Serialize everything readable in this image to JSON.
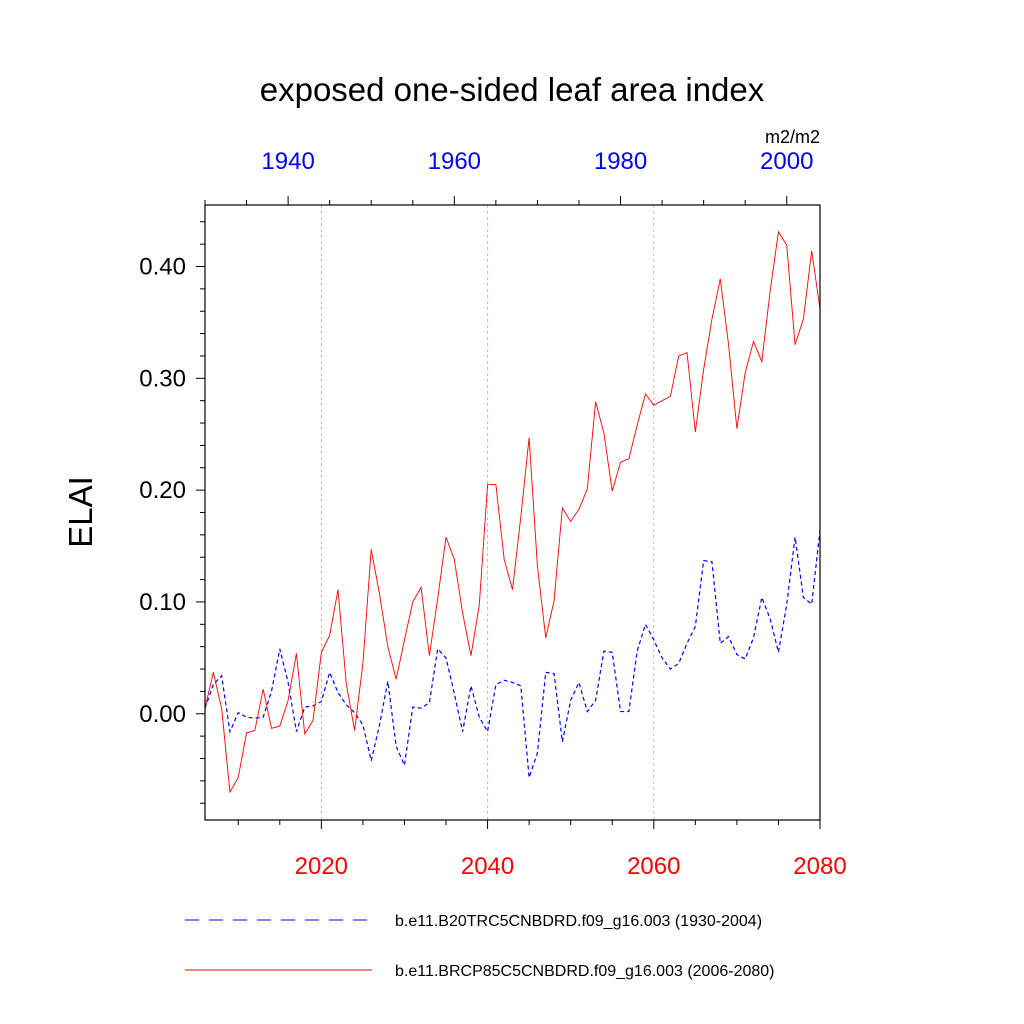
{
  "chart_data": {
    "type": "line",
    "title": "exposed one-sided leaf area index",
    "ylabel": "ELAI",
    "units": "m2/m2",
    "ylim": [
      -0.095,
      0.455
    ],
    "y_ticks": [
      0.0,
      0.1,
      0.2,
      0.3,
      0.4
    ],
    "y_tick_labels": [
      "0.00",
      "0.10",
      "0.20",
      "0.30",
      "0.40"
    ],
    "top_axis": {
      "xlim": [
        1930,
        2004
      ],
      "tick_values": [
        1940,
        1960,
        1980,
        2000
      ],
      "tick_labels": [
        "1940",
        "1960",
        "1980",
        "2000"
      ],
      "color": "#0000ff"
    },
    "bottom_axis": {
      "xlim": [
        2006,
        2080
      ],
      "tick_values": [
        2020,
        2040,
        2060,
        2080
      ],
      "tick_labels": [
        "2020",
        "2040",
        "2060",
        "2080"
      ],
      "color": "#ff0000"
    },
    "grid": "vertical dotted at bottom-axis major ticks",
    "legend_position": "bottom",
    "series": [
      {
        "name": "b.e11.B20TRC5CNBDRD.f09_g16.003 (1930-2004)",
        "axis": "top",
        "color": "#0000ff",
        "style": "dashed",
        "x": [
          1930,
          1931,
          1932,
          1933,
          1934,
          1935,
          1936,
          1937,
          1938,
          1939,
          1940,
          1941,
          1942,
          1943,
          1944,
          1945,
          1946,
          1947,
          1948,
          1949,
          1950,
          1951,
          1952,
          1953,
          1954,
          1955,
          1956,
          1957,
          1958,
          1959,
          1960,
          1961,
          1962,
          1963,
          1964,
          1965,
          1966,
          1967,
          1968,
          1969,
          1970,
          1971,
          1972,
          1973,
          1974,
          1975,
          1976,
          1977,
          1978,
          1979,
          1980,
          1981,
          1982,
          1983,
          1984,
          1985,
          1986,
          1987,
          1988,
          1989,
          1990,
          1991,
          1992,
          1993,
          1994,
          1995,
          1996,
          1997,
          1998,
          1999,
          2000,
          2001,
          2002,
          2003,
          2004
        ],
        "values": [
          0.005,
          0.026,
          0.034,
          -0.016,
          0.001,
          -0.003,
          -0.004,
          -0.003,
          0.02,
          0.058,
          0.028,
          -0.016,
          0.006,
          0.007,
          0.011,
          0.037,
          0.019,
          0.008,
          0.001,
          -0.01,
          -0.042,
          -0.01,
          0.029,
          -0.029,
          -0.046,
          0.006,
          0.005,
          0.01,
          0.058,
          0.05,
          0.018,
          -0.016,
          0.025,
          -0.003,
          -0.016,
          0.026,
          0.03,
          0.028,
          0.025,
          -0.057,
          -0.035,
          0.037,
          0.036,
          -0.025,
          0.012,
          0.028,
          0.002,
          0.012,
          0.056,
          0.055,
          0.002,
          0.002,
          0.056,
          0.08,
          0.066,
          0.05,
          0.04,
          0.045,
          0.063,
          0.078,
          0.137,
          0.136,
          0.063,
          0.069,
          0.053,
          0.049,
          0.068,
          0.104,
          0.085,
          0.055,
          0.098,
          0.158,
          0.104,
          0.098,
          0.164
        ]
      },
      {
        "name": "b.e11.BRCP85C5CNBDRD.f09_g16.003 (2006-2080)",
        "axis": "bottom",
        "color": "#ff0000",
        "style": "solid",
        "x": [
          2006,
          2007,
          2008,
          2009,
          2010,
          2011,
          2012,
          2013,
          2014,
          2015,
          2016,
          2017,
          2018,
          2019,
          2020,
          2021,
          2022,
          2023,
          2024,
          2025,
          2026,
          2027,
          2028,
          2029,
          2030,
          2031,
          2032,
          2033,
          2034,
          2035,
          2036,
          2037,
          2038,
          2039,
          2040,
          2041,
          2042,
          2043,
          2044,
          2045,
          2046,
          2047,
          2048,
          2049,
          2050,
          2051,
          2052,
          2053,
          2054,
          2055,
          2056,
          2057,
          2058,
          2059,
          2060,
          2061,
          2062,
          2063,
          2064,
          2065,
          2066,
          2067,
          2068,
          2069,
          2070,
          2071,
          2072,
          2073,
          2074,
          2075,
          2076,
          2077,
          2078,
          2079,
          2080
        ],
        "values": [
          0.005,
          0.037,
          0.005,
          -0.07,
          -0.057,
          -0.017,
          -0.015,
          0.022,
          -0.013,
          -0.011,
          0.012,
          0.054,
          -0.018,
          -0.006,
          0.055,
          0.07,
          0.111,
          0.027,
          -0.015,
          0.045,
          0.147,
          0.107,
          0.06,
          0.031,
          0.066,
          0.1,
          0.113,
          0.052,
          0.103,
          0.158,
          0.138,
          0.09,
          0.052,
          0.097,
          0.205,
          0.205,
          0.138,
          0.111,
          0.176,
          0.247,
          0.132,
          0.068,
          0.101,
          0.184,
          0.172,
          0.183,
          0.201,
          0.279,
          0.251,
          0.199,
          0.225,
          0.228,
          0.258,
          0.286,
          0.276,
          0.28,
          0.284,
          0.32,
          0.323,
          0.252,
          0.308,
          0.353,
          0.389,
          0.33,
          0.255,
          0.305,
          0.333,
          0.315,
          0.378,
          0.431,
          0.419,
          0.33,
          0.353,
          0.414,
          0.362
        ]
      }
    ]
  }
}
